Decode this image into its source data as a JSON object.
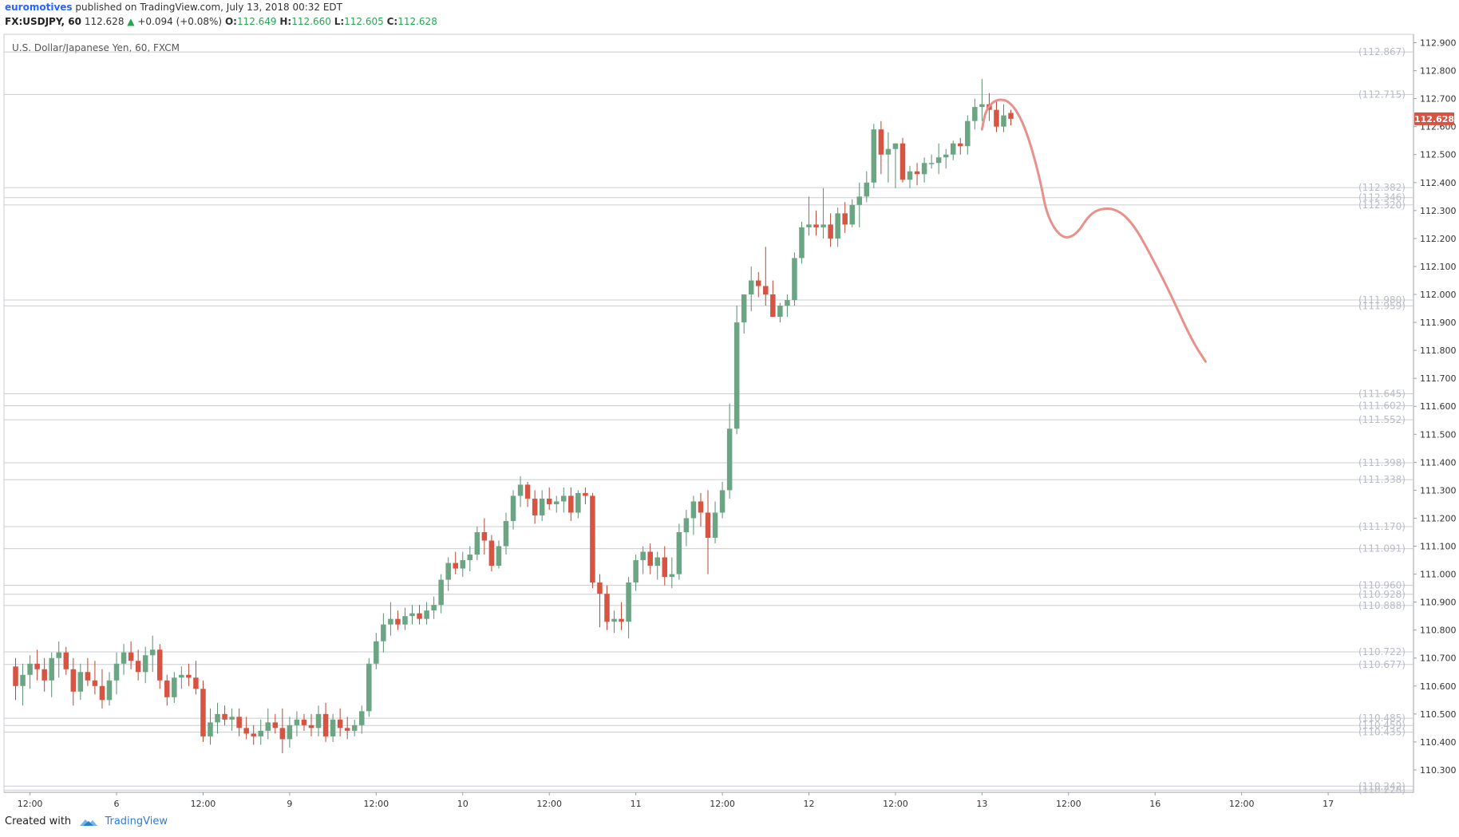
{
  "header": {
    "author": "euromotives",
    "published": "published on TradingView.com, July 13, 2018 00:32 EDT",
    "symbol": "FX:USDJPY, 60",
    "last": "112.628",
    "change": "+0.094 (+0.08%)",
    "o_label": "O:",
    "o_val": "112.649",
    "h_label": "H:",
    "h_val": "112.660",
    "l_label": "L:",
    "l_val": "112.605",
    "c_label": "C:",
    "c_val": "112.628"
  },
  "footer": {
    "created_with": "Created with",
    "brand": "TradingView"
  },
  "colors": {
    "up": "#6ba583",
    "down": "#d75442",
    "forecast": "#e8908b",
    "price_tag": "#d75442"
  },
  "chart_data": {
    "type": "candlestick",
    "title": "U.S. Dollar/Japanese Yen, 60, FXCM",
    "ylim": [
      110.22,
      112.93
    ],
    "y_ticks": [
      "110.300",
      "110.400",
      "110.500",
      "110.600",
      "110.700",
      "110.800",
      "110.900",
      "111.000",
      "111.100",
      "111.200",
      "111.300",
      "111.400",
      "111.500",
      "111.600",
      "111.700",
      "111.800",
      "111.900",
      "112.000",
      "112.100",
      "112.200",
      "112.300",
      "112.400",
      "112.500",
      "112.600",
      "112.700",
      "112.800",
      "112.900"
    ],
    "x_ticks": [
      {
        "label": "12:00",
        "slot": 2
      },
      {
        "label": "6",
        "slot": 14
      },
      {
        "label": "12:00",
        "slot": 26
      },
      {
        "label": "9",
        "slot": 38
      },
      {
        "label": "12:00",
        "slot": 50
      },
      {
        "label": "10",
        "slot": 62
      },
      {
        "label": "12:00",
        "slot": 74
      },
      {
        "label": "11",
        "slot": 86
      },
      {
        "label": "12:00",
        "slot": 98
      },
      {
        "label": "12",
        "slot": 110
      },
      {
        "label": "12:00",
        "slot": 122
      },
      {
        "label": "13",
        "slot": 134
      },
      {
        "label": "12:00",
        "slot": 146
      },
      {
        "label": "16",
        "slot": 158
      },
      {
        "label": "12:00",
        "slot": 170
      },
      {
        "label": "17",
        "slot": 182
      }
    ],
    "x_slots": 193,
    "current_price": "112.628",
    "levels": [
      {
        "value": 112.867,
        "label": "(112.867)"
      },
      {
        "value": 112.715,
        "label": "(112.715)"
      },
      {
        "value": 112.382,
        "label": "(112.382)"
      },
      {
        "value": 112.346,
        "label": "(112.346)"
      },
      {
        "value": 112.32,
        "label": "(112.320)"
      },
      {
        "value": 111.98,
        "label": "(111.980)"
      },
      {
        "value": 111.959,
        "label": "(111.959)"
      },
      {
        "value": 111.645,
        "label": "(111.645)"
      },
      {
        "value": 111.602,
        "label": "(111.602)"
      },
      {
        "value": 111.552,
        "label": "(111.552)"
      },
      {
        "value": 111.398,
        "label": "(111.398)"
      },
      {
        "value": 111.338,
        "label": "(111.338)"
      },
      {
        "value": 111.17,
        "label": "(111.170)"
      },
      {
        "value": 111.091,
        "label": "(111.091)"
      },
      {
        "value": 110.96,
        "label": "(110.960)"
      },
      {
        "value": 110.928,
        "label": "(110.928)"
      },
      {
        "value": 110.888,
        "label": "(110.888)"
      },
      {
        "value": 110.722,
        "label": "(110.722)"
      },
      {
        "value": 110.677,
        "label": "(110.677)"
      },
      {
        "value": 110.485,
        "label": "(110.485)"
      },
      {
        "value": 110.459,
        "label": "(110.459)"
      },
      {
        "value": 110.435,
        "label": "(110.435)"
      },
      {
        "value": 110.242,
        "label": "(110.242)"
      },
      {
        "value": 110.228,
        "label": "(110.228)"
      }
    ],
    "candles": [
      [
        110.67,
        110.7,
        110.55,
        110.6
      ],
      [
        110.6,
        110.68,
        110.53,
        110.64
      ],
      [
        110.64,
        110.71,
        110.59,
        110.68
      ],
      [
        110.68,
        110.73,
        110.62,
        110.66
      ],
      [
        110.66,
        110.7,
        110.58,
        110.62
      ],
      [
        110.62,
        110.72,
        110.56,
        110.7
      ],
      [
        110.7,
        110.76,
        110.63,
        110.72
      ],
      [
        110.72,
        110.74,
        110.64,
        110.66
      ],
      [
        110.66,
        110.7,
        110.53,
        110.58
      ],
      [
        110.58,
        110.68,
        110.55,
        110.65
      ],
      [
        110.65,
        110.7,
        110.6,
        110.62
      ],
      [
        110.62,
        110.69,
        110.57,
        110.6
      ],
      [
        110.6,
        110.66,
        110.52,
        110.55
      ],
      [
        110.55,
        110.65,
        110.53,
        110.62
      ],
      [
        110.62,
        110.72,
        110.57,
        110.68
      ],
      [
        110.68,
        110.75,
        110.64,
        110.72
      ],
      [
        110.72,
        110.76,
        110.66,
        110.69
      ],
      [
        110.69,
        110.73,
        110.62,
        110.65
      ],
      [
        110.65,
        110.74,
        110.61,
        110.71
      ],
      [
        110.71,
        110.78,
        110.65,
        110.73
      ],
      [
        110.73,
        110.75,
        110.59,
        110.62
      ],
      [
        110.62,
        110.64,
        110.53,
        110.56
      ],
      [
        110.56,
        110.65,
        110.54,
        110.63
      ],
      [
        110.63,
        110.67,
        110.59,
        110.64
      ],
      [
        110.64,
        110.68,
        110.6,
        110.63
      ],
      [
        110.63,
        110.69,
        110.57,
        110.59
      ],
      [
        110.59,
        110.62,
        110.4,
        110.42
      ],
      [
        110.42,
        110.52,
        110.39,
        110.47
      ],
      [
        110.47,
        110.54,
        110.43,
        110.5
      ],
      [
        110.5,
        110.53,
        110.46,
        110.48
      ],
      [
        110.48,
        110.52,
        110.44,
        110.49
      ],
      [
        110.49,
        110.52,
        110.42,
        110.45
      ],
      [
        110.45,
        110.49,
        110.41,
        110.43
      ],
      [
        110.43,
        110.46,
        110.39,
        110.42
      ],
      [
        110.42,
        110.48,
        110.39,
        110.44
      ],
      [
        110.44,
        110.52,
        110.41,
        110.47
      ],
      [
        110.47,
        110.5,
        110.43,
        110.45
      ],
      [
        110.45,
        110.52,
        110.36,
        110.41
      ],
      [
        110.41,
        110.49,
        110.38,
        110.46
      ],
      [
        110.46,
        110.51,
        110.42,
        110.48
      ],
      [
        110.48,
        110.5,
        110.44,
        110.46
      ],
      [
        110.46,
        110.5,
        110.42,
        110.45
      ],
      [
        110.45,
        110.53,
        110.42,
        110.5
      ],
      [
        110.5,
        110.54,
        110.4,
        110.42
      ],
      [
        110.42,
        110.5,
        110.4,
        110.48
      ],
      [
        110.48,
        110.52,
        110.42,
        110.45
      ],
      [
        110.45,
        110.49,
        110.41,
        110.44
      ],
      [
        110.44,
        110.48,
        110.42,
        110.46
      ],
      [
        110.46,
        110.53,
        110.43,
        110.51
      ],
      [
        110.51,
        110.7,
        110.49,
        110.68
      ],
      [
        110.68,
        110.79,
        110.66,
        110.76
      ],
      [
        110.76,
        110.86,
        110.72,
        110.82
      ],
      [
        110.82,
        110.9,
        110.78,
        110.84
      ],
      [
        110.84,
        110.87,
        110.8,
        110.82
      ],
      [
        110.82,
        110.88,
        110.8,
        110.85
      ],
      [
        110.85,
        110.89,
        110.82,
        110.86
      ],
      [
        110.86,
        110.89,
        110.82,
        110.84
      ],
      [
        110.84,
        110.9,
        110.82,
        110.87
      ],
      [
        110.87,
        110.92,
        110.84,
        110.89
      ],
      [
        110.89,
        111.0,
        110.86,
        110.98
      ],
      [
        110.98,
        111.06,
        110.94,
        111.04
      ],
      [
        111.04,
        111.08,
        111.0,
        111.02
      ],
      [
        111.02,
        111.08,
        110.99,
        111.05
      ],
      [
        111.05,
        111.1,
        111.01,
        111.07
      ],
      [
        111.07,
        111.17,
        111.05,
        111.15
      ],
      [
        111.15,
        111.2,
        111.07,
        111.12
      ],
      [
        111.12,
        111.14,
        111.01,
        111.03
      ],
      [
        111.03,
        111.12,
        111.02,
        111.1
      ],
      [
        111.1,
        111.22,
        111.07,
        111.19
      ],
      [
        111.19,
        111.3,
        111.16,
        111.28
      ],
      [
        111.28,
        111.35,
        111.24,
        111.32
      ],
      [
        111.32,
        111.33,
        111.24,
        111.27
      ],
      [
        111.27,
        111.3,
        111.18,
        111.21
      ],
      [
        111.21,
        111.3,
        111.19,
        111.27
      ],
      [
        111.27,
        111.31,
        111.23,
        111.25
      ],
      [
        111.25,
        111.28,
        111.22,
        111.26
      ],
      [
        111.26,
        111.31,
        111.22,
        111.28
      ],
      [
        111.28,
        111.31,
        111.19,
        111.22
      ],
      [
        111.22,
        111.3,
        111.2,
        111.29
      ],
      [
        111.29,
        111.31,
        111.25,
        111.28
      ],
      [
        111.28,
        111.29,
        110.95,
        110.97
      ],
      [
        110.97,
        111.0,
        110.81,
        110.93
      ],
      [
        110.93,
        110.96,
        110.8,
        110.83
      ],
      [
        110.83,
        110.87,
        110.79,
        110.84
      ],
      [
        110.84,
        110.9,
        110.8,
        110.83
      ],
      [
        110.83,
        110.99,
        110.77,
        110.97
      ],
      [
        110.97,
        111.07,
        110.94,
        111.05
      ],
      [
        111.05,
        111.1,
        111.0,
        111.08
      ],
      [
        111.08,
        111.11,
        111.0,
        111.03
      ],
      [
        111.03,
        111.08,
        110.98,
        111.06
      ],
      [
        111.06,
        111.1,
        110.96,
        110.99
      ],
      [
        110.99,
        111.06,
        110.95,
        111.0
      ],
      [
        111.0,
        111.18,
        110.98,
        111.15
      ],
      [
        111.15,
        111.23,
        111.1,
        111.2
      ],
      [
        111.2,
        111.28,
        111.14,
        111.26
      ],
      [
        111.26,
        111.29,
        111.17,
        111.22
      ],
      [
        111.22,
        111.3,
        111.0,
        111.13
      ],
      [
        111.13,
        111.26,
        111.11,
        111.22
      ],
      [
        111.22,
        111.33,
        111.2,
        111.3
      ],
      [
        111.3,
        111.61,
        111.27,
        111.52
      ],
      [
        111.52,
        111.96,
        111.5,
        111.9
      ],
      [
        111.9,
        112.0,
        111.86,
        112.0
      ],
      [
        112.0,
        112.1,
        111.94,
        112.05
      ],
      [
        112.05,
        112.08,
        111.99,
        112.03
      ],
      [
        112.03,
        112.17,
        111.96,
        112.0
      ],
      [
        112.0,
        112.05,
        111.93,
        111.92
      ],
      [
        111.92,
        111.97,
        111.9,
        111.96
      ],
      [
        111.96,
        112.0,
        111.92,
        111.98
      ],
      [
        111.98,
        112.15,
        111.96,
        112.13
      ],
      [
        112.13,
        112.26,
        112.11,
        112.24
      ],
      [
        112.24,
        112.35,
        112.21,
        112.25
      ],
      [
        112.25,
        112.3,
        112.21,
        112.24
      ],
      [
        112.24,
        112.38,
        112.2,
        112.25
      ],
      [
        112.25,
        112.29,
        112.17,
        112.2
      ],
      [
        112.2,
        112.31,
        112.17,
        112.29
      ],
      [
        112.29,
        112.33,
        112.22,
        112.25
      ],
      [
        112.25,
        112.34,
        112.24,
        112.32
      ],
      [
        112.32,
        112.4,
        112.24,
        112.35
      ],
      [
        112.35,
        112.44,
        112.33,
        112.4
      ],
      [
        112.4,
        112.61,
        112.38,
        112.59
      ],
      [
        112.59,
        112.62,
        112.43,
        112.5
      ],
      [
        112.5,
        112.58,
        112.4,
        112.52
      ],
      [
        112.52,
        112.54,
        112.38,
        112.54
      ],
      [
        112.54,
        112.56,
        112.4,
        112.41
      ],
      [
        112.41,
        112.46,
        112.38,
        112.44
      ],
      [
        112.44,
        112.47,
        112.39,
        112.43
      ],
      [
        112.43,
        112.49,
        112.4,
        112.47
      ],
      [
        112.47,
        112.5,
        112.45,
        112.47
      ],
      [
        112.47,
        112.54,
        112.43,
        112.49
      ],
      [
        112.49,
        112.52,
        112.45,
        112.5
      ],
      [
        112.5,
        112.55,
        112.48,
        112.54
      ],
      [
        112.54,
        112.56,
        112.5,
        112.53
      ],
      [
        112.53,
        112.64,
        112.5,
        112.62
      ],
      [
        112.62,
        112.7,
        112.59,
        112.67
      ],
      [
        112.67,
        112.77,
        112.62,
        112.68
      ],
      [
        112.68,
        112.72,
        112.62,
        112.66
      ],
      [
        112.66,
        112.69,
        112.58,
        112.6
      ],
      [
        112.6,
        112.68,
        112.58,
        112.64
      ],
      [
        112.649,
        112.66,
        112.605,
        112.628
      ]
    ],
    "forecast_path": [
      [
        134,
        112.59
      ],
      [
        134.5,
        112.66
      ],
      [
        136,
        112.7
      ],
      [
        138,
        112.69
      ],
      [
        140,
        112.6
      ],
      [
        142,
        112.42
      ],
      [
        143,
        112.28
      ],
      [
        145,
        112.2
      ],
      [
        147,
        112.21
      ],
      [
        149,
        112.29
      ],
      [
        151,
        112.31
      ],
      [
        153,
        112.3
      ],
      [
        155,
        112.25
      ],
      [
        157,
        112.16
      ],
      [
        160,
        112.01
      ],
      [
        163,
        111.84
      ],
      [
        165,
        111.76
      ]
    ]
  }
}
